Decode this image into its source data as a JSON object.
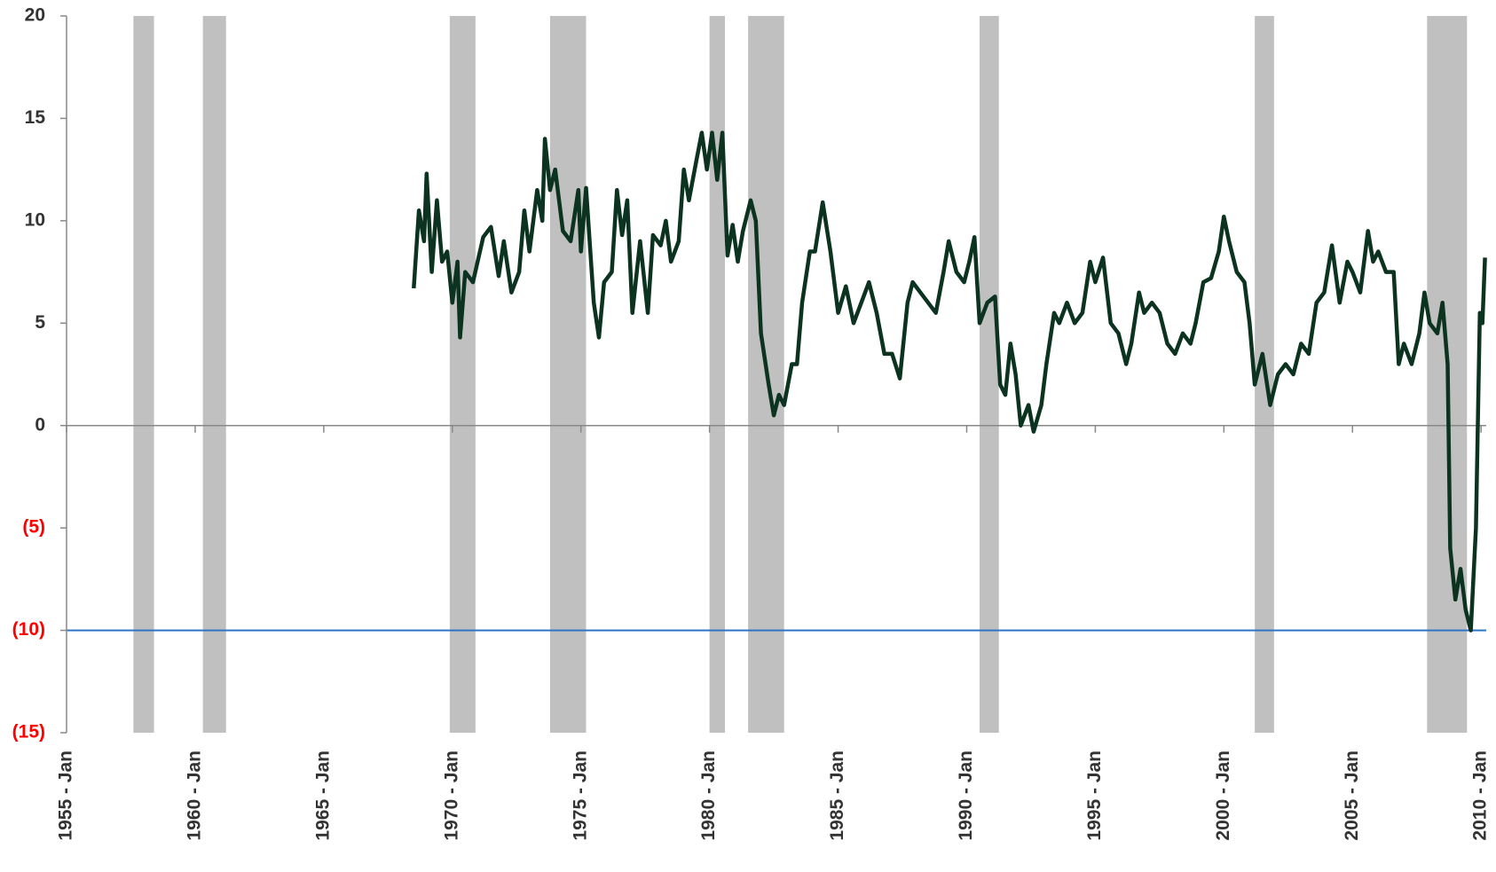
{
  "chart_data": {
    "type": "line",
    "xlim": [
      1955,
      2010.2
    ],
    "xticks": [
      {
        "value": 1955,
        "label": "1955 - Jan"
      },
      {
        "value": 1960,
        "label": "1960 - Jan"
      },
      {
        "value": 1965,
        "label": "1965 - Jan"
      },
      {
        "value": 1970,
        "label": "1970 - Jan"
      },
      {
        "value": 1975,
        "label": "1975 - Jan"
      },
      {
        "value": 1980,
        "label": "1980 - Jan"
      },
      {
        "value": 1985,
        "label": "1985 - Jan"
      },
      {
        "value": 1990,
        "label": "1990 - Jan"
      },
      {
        "value": 1995,
        "label": "1995 - Jan"
      },
      {
        "value": 2000,
        "label": "2000 - Jan"
      },
      {
        "value": 2005,
        "label": "2005 - Jan"
      },
      {
        "value": 2010,
        "label": "2010 - Jan"
      }
    ],
    "ylim": [
      -15,
      20
    ],
    "yticks": [
      20,
      15,
      10,
      5,
      0,
      {
        "value": -5,
        "label": "(5)"
      },
      {
        "value": -10,
        "label": "(10)"
      },
      {
        "value": -15,
        "label": "(15)"
      }
    ],
    "negative_tick_color": "#ff0000",
    "shaded_periods": [
      [
        1957.6,
        1958.4
      ],
      [
        1960.3,
        1961.2
      ],
      [
        1969.9,
        1970.9
      ],
      [
        1973.8,
        1975.2
      ],
      [
        1980.0,
        1980.6
      ],
      [
        1981.5,
        1982.9
      ],
      [
        1990.5,
        1991.25
      ],
      [
        2001.2,
        2001.95
      ],
      [
        2007.9,
        2009.45
      ]
    ],
    "shade_color": "#c0c0c0",
    "hline": {
      "value": -10,
      "color": "#2e74c8"
    },
    "series": [
      {
        "color": "#0b3320",
        "x": [
          1968.5,
          1968.7,
          1968.9,
          1969.0,
          1969.2,
          1969.4,
          1969.6,
          1969.8,
          1970.0,
          1970.2,
          1970.3,
          1970.5,
          1970.8,
          1971.2,
          1971.5,
          1971.8,
          1972.0,
          1972.3,
          1972.6,
          1972.8,
          1973.0,
          1973.3,
          1973.5,
          1973.6,
          1973.8,
          1974.0,
          1974.3,
          1974.6,
          1974.9,
          1975.0,
          1975.2,
          1975.5,
          1975.7,
          1975.9,
          1976.2,
          1976.4,
          1976.6,
          1976.8,
          1977.0,
          1977.3,
          1977.6,
          1977.8,
          1978.1,
          1978.3,
          1978.5,
          1978.8,
          1979.0,
          1979.2,
          1979.5,
          1979.7,
          1979.9,
          1980.1,
          1980.3,
          1980.5,
          1980.7,
          1980.9,
          1981.1,
          1981.3,
          1981.6,
          1981.8,
          1982.0,
          1982.3,
          1982.5,
          1982.7,
          1982.9,
          1983.2,
          1983.4,
          1983.6,
          1983.9,
          1984.1,
          1984.4,
          1984.7,
          1985.0,
          1985.3,
          1985.6,
          1985.9,
          1986.2,
          1986.5,
          1986.8,
          1987.1,
          1987.4,
          1987.7,
          1987.9,
          1988.2,
          1988.5,
          1988.8,
          1989.1,
          1989.3,
          1989.6,
          1989.9,
          1990.1,
          1990.3,
          1990.5,
          1990.8,
          1991.1,
          1991.3,
          1991.5,
          1991.7,
          1991.9,
          1992.1,
          1992.4,
          1992.6,
          1992.9,
          1993.1,
          1993.4,
          1993.6,
          1993.9,
          1994.2,
          1994.5,
          1994.8,
          1995.0,
          1995.3,
          1995.6,
          1995.9,
          1996.2,
          1996.4,
          1996.7,
          1996.9,
          1997.2,
          1997.5,
          1997.8,
          1998.1,
          1998.4,
          1998.7,
          1998.9,
          1999.2,
          1999.5,
          1999.8,
          2000.0,
          2000.2,
          2000.5,
          2000.8,
          2001.0,
          2001.2,
          2001.5,
          2001.8,
          2002.1,
          2002.4,
          2002.7,
          2003.0,
          2003.3,
          2003.6,
          2003.9,
          2004.2,
          2004.5,
          2004.8,
          2005.0,
          2005.3,
          2005.6,
          2005.8,
          2006.0,
          2006.3,
          2006.6,
          2006.8,
          2007.0,
          2007.3,
          2007.6,
          2007.8,
          2008.0,
          2008.3,
          2008.5,
          2008.7,
          2008.8,
          2009.0,
          2009.2,
          2009.4,
          2009.6,
          2009.8,
          2009.95,
          2010.05,
          2010.15
        ],
        "values": [
          6.7,
          10.5,
          9,
          12.3,
          7.5,
          11,
          8,
          8.5,
          6,
          8,
          4.3,
          7.5,
          7,
          9.2,
          9.7,
          7.3,
          9,
          6.5,
          7.5,
          10.5,
          8.5,
          11.5,
          10,
          14,
          11.5,
          12.5,
          9.5,
          9,
          11.5,
          8.5,
          11.6,
          6,
          4.3,
          7,
          7.5,
          11.5,
          9.3,
          11,
          5.5,
          9,
          5.5,
          9.3,
          8.8,
          10,
          8,
          9,
          12.5,
          11,
          13,
          14.3,
          12.5,
          14.3,
          12,
          14.3,
          8.3,
          9.8,
          8,
          9.5,
          11,
          10,
          4.5,
          2,
          0.5,
          1.5,
          1,
          3,
          3,
          6,
          8.5,
          8.5,
          10.9,
          8.5,
          5.5,
          6.8,
          5,
          6,
          7,
          5.5,
          3.5,
          3.5,
          2.3,
          6,
          7,
          6.5,
          6,
          5.5,
          7.5,
          9,
          7.5,
          7,
          8,
          9.2,
          5,
          6,
          6.3,
          2,
          1.5,
          4,
          2.5,
          0,
          1,
          -0.3,
          1,
          3,
          5.5,
          5,
          6,
          5,
          5.5,
          8,
          7,
          8.2,
          5,
          4.5,
          3,
          4,
          6.5,
          5.5,
          6,
          5.5,
          4,
          3.5,
          4.5,
          4,
          5,
          7,
          7.2,
          8.5,
          10.2,
          9,
          7.5,
          7,
          5,
          2,
          3.5,
          1,
          2.5,
          3,
          2.5,
          4,
          3.5,
          6,
          6.5,
          8.8,
          6,
          8,
          7.5,
          6.5,
          9.5,
          8,
          8.5,
          7.5,
          7.5,
          3,
          4,
          3,
          4.5,
          6.5,
          5,
          4.5,
          6,
          3,
          -6,
          -8.5,
          -7,
          -9,
          -10,
          -5,
          5.5,
          5,
          8.2
        ]
      }
    ]
  }
}
